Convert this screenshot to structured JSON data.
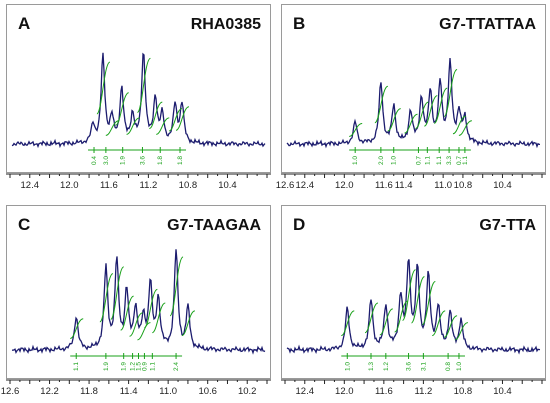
{
  "colors": {
    "spectrum": "#1c1c6e",
    "integral": "#19a119",
    "axis": "#222222"
  },
  "chart_data": [
    {
      "type": "line",
      "panel_label": "A",
      "title": "RHA0385",
      "xlabel": "",
      "ylabel": "",
      "x_reversed": true,
      "xlim": [
        12.6,
        10.0
      ],
      "tick_labels": [
        "12.4",
        "12.0",
        "11.6",
        "11.2",
        "10.8",
        "10.4"
      ],
      "tick_values": [
        12.4,
        12.0,
        11.6,
        11.2,
        10.8,
        10.4
      ],
      "peaks": [
        {
          "ppm": 11.76,
          "height": 0.18
        },
        {
          "ppm": 11.66,
          "height": 0.88
        },
        {
          "ppm": 11.57,
          "height": 0.25
        },
        {
          "ppm": 11.47,
          "height": 0.55
        },
        {
          "ppm": 11.36,
          "height": 0.28
        },
        {
          "ppm": 11.25,
          "height": 0.92
        },
        {
          "ppm": 11.13,
          "height": 0.45
        },
        {
          "ppm": 11.06,
          "height": 0.28
        },
        {
          "ppm": 10.93,
          "height": 0.38
        },
        {
          "ppm": 10.86,
          "height": 0.4
        }
      ],
      "integrals": [
        {
          "ppm": 11.75,
          "label": "0.4"
        },
        {
          "ppm": 11.63,
          "label": "3.0"
        },
        {
          "ppm": 11.46,
          "label": "1.9"
        },
        {
          "ppm": 11.26,
          "label": "3.6"
        },
        {
          "ppm": 11.08,
          "label": "1.8"
        },
        {
          "ppm": 10.88,
          "label": "1.8"
        }
      ]
    },
    {
      "type": "line",
      "panel_label": "B",
      "title": "G7-TTATTAA",
      "xlabel": "",
      "ylabel": "",
      "x_reversed": true,
      "xlim": [
        12.6,
        10.0
      ],
      "tick_labels": [
        "12.6",
        "12.4",
        "12.0",
        "11.6",
        "11.4",
        "11.0",
        "10.8",
        "10.4"
      ],
      "tick_values": [
        12.6,
        12.4,
        12.0,
        11.6,
        11.4,
        11.0,
        10.8,
        10.4
      ],
      "peaks": [
        {
          "ppm": 11.89,
          "height": 0.22
        },
        {
          "ppm": 11.63,
          "height": 0.62
        },
        {
          "ppm": 11.5,
          "height": 0.38
        },
        {
          "ppm": 11.33,
          "height": 0.32
        },
        {
          "ppm": 11.22,
          "height": 0.45
        },
        {
          "ppm": 11.13,
          "height": 0.52
        },
        {
          "ppm": 11.03,
          "height": 0.6
        },
        {
          "ppm": 10.93,
          "height": 0.8
        },
        {
          "ppm": 10.84,
          "height": 0.3
        },
        {
          "ppm": 10.78,
          "height": 0.25
        }
      ],
      "integrals": [
        {
          "ppm": 11.89,
          "label": "1.0"
        },
        {
          "ppm": 11.63,
          "label": "2.0"
        },
        {
          "ppm": 11.5,
          "label": "1.0"
        },
        {
          "ppm": 11.25,
          "label": "0.7"
        },
        {
          "ppm": 11.16,
          "label": "1.1"
        },
        {
          "ppm": 11.04,
          "label": "1.1"
        },
        {
          "ppm": 10.94,
          "label": "3.3"
        },
        {
          "ppm": 10.84,
          "label": "0.7"
        },
        {
          "ppm": 10.78,
          "label": "1.1"
        }
      ]
    },
    {
      "type": "line",
      "panel_label": "C",
      "title": "G7-TAAGAA",
      "xlabel": "",
      "ylabel": "",
      "x_reversed": true,
      "xlim": [
        12.6,
        10.0
      ],
      "tick_labels": [
        "12.6",
        "12.2",
        "11.8",
        "11.4",
        "11.0",
        "10.6",
        "10.2"
      ],
      "tick_values": [
        12.6,
        12.2,
        11.8,
        11.4,
        11.0,
        10.6,
        10.2
      ],
      "peaks": [
        {
          "ppm": 11.93,
          "height": 0.32
        },
        {
          "ppm": 11.63,
          "height": 0.78
        },
        {
          "ppm": 11.52,
          "height": 0.85
        },
        {
          "ppm": 11.42,
          "height": 0.55
        },
        {
          "ppm": 11.33,
          "height": 0.38
        },
        {
          "ppm": 11.25,
          "height": 0.28
        },
        {
          "ppm": 11.18,
          "height": 0.62
        },
        {
          "ppm": 11.1,
          "height": 0.48
        },
        {
          "ppm": 10.92,
          "height": 0.95
        },
        {
          "ppm": 10.8,
          "height": 0.4
        }
      ],
      "integrals": [
        {
          "ppm": 11.93,
          "label": "1.1"
        },
        {
          "ppm": 11.63,
          "label": "1.9"
        },
        {
          "ppm": 11.45,
          "label": "1.9"
        },
        {
          "ppm": 11.36,
          "label": "1.2"
        },
        {
          "ppm": 11.3,
          "label": "1.5"
        },
        {
          "ppm": 11.24,
          "label": "0.9"
        },
        {
          "ppm": 11.16,
          "label": "1.1"
        },
        {
          "ppm": 10.92,
          "label": "2.4"
        }
      ]
    },
    {
      "type": "line",
      "panel_label": "D",
      "title": "G7-TTA",
      "xlabel": "",
      "ylabel": "",
      "x_reversed": true,
      "xlim": [
        12.6,
        10.0
      ],
      "tick_labels": [
        "12.4",
        "12.0",
        "11.6",
        "11.2",
        "10.8",
        "10.4"
      ],
      "tick_values": [
        12.4,
        12.0,
        11.6,
        11.2,
        10.8,
        10.4
      ],
      "peaks": [
        {
          "ppm": 11.97,
          "height": 0.4
        },
        {
          "ppm": 11.73,
          "height": 0.48
        },
        {
          "ppm": 11.58,
          "height": 0.42
        },
        {
          "ppm": 11.43,
          "height": 0.5
        },
        {
          "ppm": 11.35,
          "height": 0.82
        },
        {
          "ppm": 11.26,
          "height": 0.75
        },
        {
          "ppm": 11.15,
          "height": 0.7
        },
        {
          "ppm": 11.05,
          "height": 0.4
        },
        {
          "ppm": 10.93,
          "height": 0.35
        },
        {
          "ppm": 10.82,
          "height": 0.28
        }
      ],
      "integrals": [
        {
          "ppm": 11.97,
          "label": "1.0"
        },
        {
          "ppm": 11.73,
          "label": "1.3"
        },
        {
          "ppm": 11.58,
          "label": "1.2"
        },
        {
          "ppm": 11.35,
          "label": "3.6"
        },
        {
          "ppm": 11.2,
          "label": "3.1"
        },
        {
          "ppm": 10.95,
          "label": "0.8"
        },
        {
          "ppm": 10.84,
          "label": "1.0"
        }
      ]
    }
  ]
}
